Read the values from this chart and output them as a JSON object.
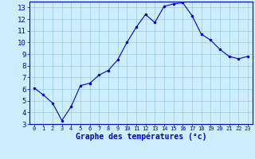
{
  "hours": [
    0,
    1,
    2,
    3,
    4,
    5,
    6,
    7,
    8,
    9,
    10,
    11,
    12,
    13,
    14,
    15,
    16,
    17,
    18,
    19,
    20,
    21,
    22,
    23
  ],
  "temps": [
    6.1,
    5.5,
    4.8,
    3.3,
    4.5,
    6.3,
    6.5,
    7.2,
    7.6,
    8.5,
    10.0,
    11.3,
    12.4,
    11.7,
    13.1,
    13.3,
    13.4,
    12.3,
    10.7,
    10.2,
    9.4,
    8.8,
    8.6,
    8.8
  ],
  "line_color": "#0000cc",
  "marker": ".",
  "marker_size": 3,
  "bg_color": "#cceeff",
  "grid_color": "#99ccdd",
  "xlabel": "Graphe des températures (°c)",
  "xlabel_color": "#0000cc",
  "tick_color": "#0000cc",
  "axis_label_color": "#0000cc",
  "xlim": [
    -0.5,
    23.5
  ],
  "ylim": [
    3,
    13.5
  ],
  "yticks": [
    3,
    4,
    5,
    6,
    7,
    8,
    9,
    10,
    11,
    12,
    13
  ],
  "xticks": [
    0,
    1,
    2,
    3,
    4,
    5,
    6,
    7,
    8,
    9,
    10,
    11,
    12,
    13,
    14,
    15,
    16,
    17,
    18,
    19,
    20,
    21,
    22,
    23
  ]
}
